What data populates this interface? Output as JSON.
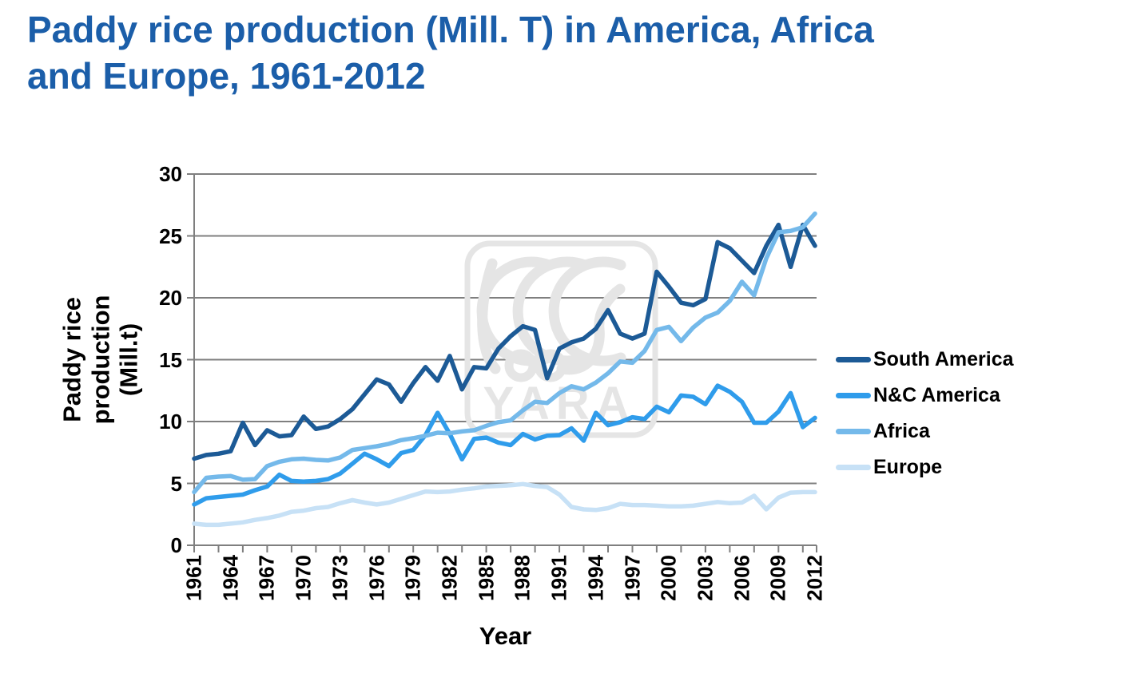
{
  "title": {
    "text": "Paddy rice production (Mill. T) in America, Africa\nand Europe, 1961-2012",
    "color": "#1b5ea9"
  },
  "watermark": {
    "text": "YARA",
    "color": "#e5e5e5"
  },
  "chart_data": {
    "type": "line",
    "title": "Paddy rice production (Mill. T) in America, Africa and Europe, 1961-2012",
    "xlabel": "Year",
    "ylabel": "Paddy rice production\n(Mill.t)",
    "x_start": 1961,
    "x_end": 2012,
    "ylim": [
      0,
      30
    ],
    "y_ticks": [
      0,
      5,
      10,
      15,
      20,
      25,
      30
    ],
    "x_tick_label_years": [
      1961,
      1964,
      1967,
      1970,
      1973,
      1976,
      1979,
      1982,
      1985,
      1988,
      1991,
      1994,
      1997,
      2000,
      2003,
      2006,
      2009,
      2012
    ],
    "grid": true,
    "grid_color": "#7f7f7f",
    "axis_color": "#7f7f7f",
    "legend_position": "right",
    "series": [
      {
        "name": "South America",
        "color": "#1c5a96",
        "values": [
          7.0,
          7.3,
          7.4,
          7.6,
          9.9,
          8.1,
          9.3,
          8.8,
          8.9,
          10.4,
          9.4,
          9.6,
          10.2,
          11.0,
          12.2,
          13.4,
          13.0,
          11.6,
          13.1,
          14.4,
          13.3,
          15.3,
          12.6,
          14.4,
          14.3,
          15.9,
          16.9,
          17.7,
          17.4,
          13.5,
          15.9,
          16.4,
          16.7,
          17.5,
          19.0,
          17.1,
          16.7,
          17.1,
          22.1,
          20.9,
          19.6,
          19.4,
          19.9,
          24.5,
          24.0,
          23.0,
          22.0,
          24.2,
          25.9,
          22.5,
          25.9,
          24.2
        ]
      },
      {
        "name": "N&C America",
        "color": "#2f9ceb",
        "values": [
          3.3,
          3.8,
          3.9,
          4.0,
          4.1,
          4.45,
          4.75,
          5.7,
          5.2,
          5.15,
          5.2,
          5.35,
          5.8,
          6.6,
          7.4,
          6.95,
          6.4,
          7.45,
          7.7,
          8.9,
          10.7,
          9.0,
          6.95,
          8.6,
          8.7,
          8.3,
          8.1,
          9.0,
          8.55,
          8.85,
          8.9,
          9.45,
          8.45,
          10.7,
          9.7,
          9.95,
          10.35,
          10.2,
          11.2,
          10.75,
          12.1,
          12.0,
          11.4,
          12.9,
          12.4,
          11.6,
          9.9,
          9.9,
          10.8,
          12.3,
          9.55,
          10.3
        ]
      },
      {
        "name": "Africa",
        "color": "#74b9ea",
        "values": [
          4.3,
          5.45,
          5.55,
          5.6,
          5.3,
          5.35,
          6.4,
          6.75,
          6.95,
          7.0,
          6.9,
          6.85,
          7.1,
          7.7,
          7.85,
          8.0,
          8.2,
          8.5,
          8.65,
          8.85,
          9.1,
          9.05,
          9.2,
          9.3,
          9.65,
          9.95,
          10.1,
          10.9,
          11.6,
          11.5,
          12.3,
          12.85,
          12.6,
          13.15,
          13.9,
          14.85,
          14.75,
          15.7,
          17.4,
          17.65,
          16.5,
          17.6,
          18.4,
          18.8,
          19.75,
          21.3,
          20.2,
          23.2,
          25.3,
          25.4,
          25.7,
          26.8
        ]
      },
      {
        "name": "Europe",
        "color": "#c7e1f6",
        "values": [
          1.75,
          1.65,
          1.65,
          1.75,
          1.85,
          2.05,
          2.2,
          2.4,
          2.7,
          2.8,
          3.0,
          3.1,
          3.4,
          3.65,
          3.45,
          3.3,
          3.45,
          3.75,
          4.05,
          4.35,
          4.3,
          4.35,
          4.5,
          4.6,
          4.75,
          4.8,
          4.85,
          4.95,
          4.8,
          4.7,
          4.1,
          3.1,
          2.9,
          2.85,
          3.0,
          3.35,
          3.25,
          3.25,
          3.2,
          3.15,
          3.15,
          3.2,
          3.35,
          3.5,
          3.4,
          3.45,
          4.0,
          2.9,
          3.85,
          4.25,
          4.3,
          4.3
        ]
      }
    ]
  }
}
